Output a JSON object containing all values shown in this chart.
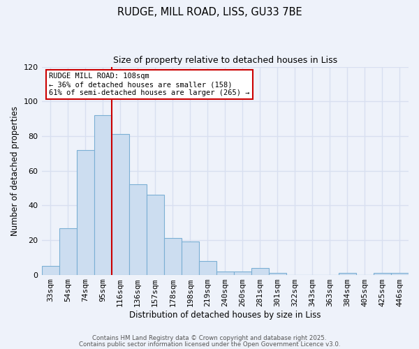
{
  "title_line1": "RUDGE, MILL ROAD, LISS, GU33 7BE",
  "title_line2": "Size of property relative to detached houses in Liss",
  "xlabel": "Distribution of detached houses by size in Liss",
  "ylabel": "Number of detached properties",
  "bar_labels": [
    "33sqm",
    "54sqm",
    "74sqm",
    "95sqm",
    "116sqm",
    "136sqm",
    "157sqm",
    "178sqm",
    "198sqm",
    "219sqm",
    "240sqm",
    "260sqm",
    "281sqm",
    "301sqm",
    "322sqm",
    "343sqm",
    "363sqm",
    "384sqm",
    "405sqm",
    "425sqm",
    "446sqm"
  ],
  "bar_values": [
    5,
    27,
    72,
    92,
    81,
    52,
    46,
    21,
    19,
    8,
    2,
    2,
    4,
    1,
    0,
    0,
    0,
    1,
    0,
    1,
    1
  ],
  "bar_color": "#ccddf0",
  "bar_edge_color": "#7bafd4",
  "vline_index": 4,
  "vline_color": "#cc0000",
  "annotation_text": "RUDGE MILL ROAD: 108sqm\n← 36% of detached houses are smaller (158)\n61% of semi-detached houses are larger (265) →",
  "annotation_box_color": "white",
  "annotation_box_edge": "#cc0000",
  "ylim": [
    0,
    120
  ],
  "yticks": [
    0,
    20,
    40,
    60,
    80,
    100,
    120
  ],
  "footer_line1": "Contains HM Land Registry data © Crown copyright and database right 2025.",
  "footer_line2": "Contains public sector information licensed under the Open Government Licence v3.0.",
  "background_color": "#eef2fa",
  "grid_color": "#d8dff0"
}
